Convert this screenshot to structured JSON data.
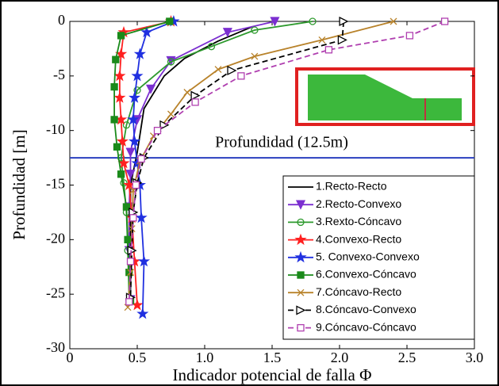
{
  "chart_data": {
    "type": "line",
    "xlabel": "Indicador potencial de falla Φ",
    "ylabel": "Profundidad [m]",
    "xlim": [
      0,
      3
    ],
    "ylim": [
      -30,
      0
    ],
    "xticks": [
      0,
      0.5,
      {
        "value": 1,
        "label": "1.0"
      },
      1.5,
      {
        "value": 2,
        "label": "2.0"
      },
      2.5,
      {
        "value": 3,
        "label": "3.0"
      }
    ],
    "yticks": [
      0,
      -5,
      -10,
      -15,
      -20,
      -25,
      -30
    ],
    "hline": -12.5,
    "hline_color": "#2a3fbf",
    "annotation": "Profundidad (12.5m)",
    "series": [
      {
        "name": "1.Recto-Recto",
        "color": "#000000",
        "marker": "none",
        "dashed": false,
        "x": [
          1.35,
          1.1,
          0.85,
          0.7,
          0.55,
          0.5,
          0.45,
          0.45,
          0.45
        ],
        "values": [
          -0.5,
          -1.8,
          -3.4,
          -5,
          -8,
          -12,
          -15,
          -20,
          -26
        ]
      },
      {
        "name": "2.Recto-Convexo",
        "color": "#7b2fd0",
        "marker": "triangle-down",
        "dashed": false,
        "x": [
          1.52,
          1.17,
          0.75,
          0.6,
          0.5,
          0.45,
          0.45,
          0.44,
          0.44,
          0.45
        ],
        "values": [
          0,
          -1,
          -3.6,
          -6.2,
          -9,
          -12,
          -14,
          -17,
          -21,
          -25.5
        ]
      },
      {
        "name": "3.Rexto-Cóncavo",
        "color": "#2e9a2e",
        "marker": "circle",
        "dashed": false,
        "x": [
          1.8,
          1.37,
          1.05,
          0.75,
          0.5,
          0.42,
          0.38,
          0.4,
          0.42,
          0.43,
          0.44
        ],
        "values": [
          0,
          -0.8,
          -2.3,
          -3.7,
          -6.3,
          -9.5,
          -12.5,
          -14.8,
          -17.5,
          -21,
          -25.5
        ]
      },
      {
        "name": "4.Convexo-Recto",
        "color": "#ff2020",
        "marker": "star",
        "dashed": false,
        "x": [
          0.75,
          0.4,
          0.38,
          0.37,
          0.37,
          0.38,
          0.39,
          0.4,
          0.44,
          0.46,
          0.48,
          0.5
        ],
        "values": [
          0,
          -1,
          -3,
          -5,
          -7,
          -9,
          -11,
          -13,
          -15,
          -18,
          -22,
          -26
        ]
      },
      {
        "name": "5. Convexo-Convexo",
        "color": "#2030e0",
        "marker": "star",
        "dashed": false,
        "x": [
          0.77,
          0.57,
          0.52,
          0.5,
          0.48,
          0.47,
          0.48,
          0.5,
          0.52,
          0.53,
          0.55,
          0.54
        ],
        "values": [
          0,
          -1,
          -3,
          -5,
          -7,
          -9,
          -11,
          -13,
          -15,
          -18,
          -22,
          -26.8
        ]
      },
      {
        "name": "6.Convexo-Cóncavo",
        "color": "#1a8a1a",
        "marker": "square-filled",
        "dashed": false,
        "x": [
          0.74,
          0.38,
          0.34,
          0.33,
          0.33,
          0.35,
          0.38,
          0.42,
          0.43,
          0.44,
          0.45
        ],
        "values": [
          0,
          -1.3,
          -3.5,
          -6,
          -9,
          -11.5,
          -14,
          -17,
          -20,
          -23,
          -25.6
        ]
      },
      {
        "name": "7.Cóncavo-Recto",
        "color": "#b8822a",
        "marker": "x",
        "dashed": false,
        "x": [
          2.4,
          1.87,
          1.37,
          1.1,
          0.87,
          0.75,
          0.62,
          0.52,
          0.47,
          0.46,
          0.45,
          0.43
        ],
        "values": [
          0,
          -1.7,
          -3.2,
          -4.4,
          -6.5,
          -8.5,
          -10.5,
          -12.8,
          -15.5,
          -19,
          -23,
          -26.2
        ]
      },
      {
        "name": "8.Cóncavo-Convexo",
        "color": "#000000",
        "marker": "triangle-right",
        "dashed": true,
        "x": [
          2.03,
          2.02,
          1.2,
          0.93,
          0.7,
          0.55,
          0.5,
          0.47,
          0.46,
          0.45
        ],
        "values": [
          0,
          -1.7,
          -4.5,
          -6.8,
          -9.5,
          -12.5,
          -14.8,
          -17.5,
          -21,
          -25.3
        ]
      },
      {
        "name": "9.Cóncavo-Cóncavo",
        "color": "#b040b0",
        "marker": "square",
        "dashed": true,
        "x": [
          2.78,
          2.52,
          1.92,
          1.27,
          0.93,
          0.65,
          0.53,
          0.49,
          0.47,
          0.45,
          0.44
        ],
        "values": [
          0,
          -1.3,
          -2.6,
          -5,
          -7.4,
          -10,
          -12.6,
          -15,
          -18,
          -22,
          -25.7
        ]
      }
    ]
  }
}
